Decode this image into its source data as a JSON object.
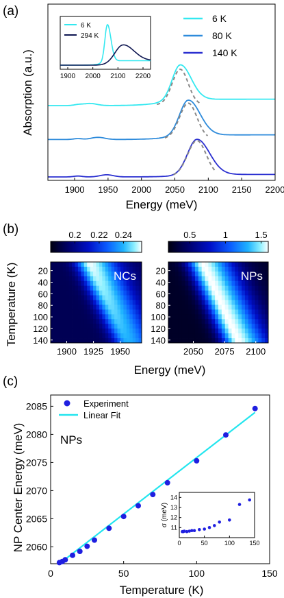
{
  "panels": {
    "a": {
      "label": "(a)",
      "chart_data": {
        "type": "line",
        "xlabel": "Energy (meV)",
        "ylabel": "Absorption (a.u.)",
        "xlim": [
          1860,
          2200
        ],
        "xticks": [
          1900,
          1950,
          2000,
          2050,
          2100,
          2150,
          2200
        ],
        "yticks": false,
        "legend": "top-right",
        "series": [
          {
            "name": "6 K",
            "color": "#33e8f0",
            "peak": 2058,
            "width": 12,
            "amp": 1.0,
            "baseline": 0.0,
            "tail": 0.18,
            "offset": 2.0
          },
          {
            "name": "80 K",
            "color": "#2e8bdb",
            "peak": 2070,
            "width": 13,
            "amp": 1.0,
            "baseline": 0.0,
            "tail": 0.13,
            "offset": 1.05
          },
          {
            "name": "140 K",
            "color": "#2a2fd0",
            "peak": 2083,
            "width": 14,
            "amp": 1.0,
            "baseline": 0.0,
            "tail": 0.07,
            "offset": 0.0
          }
        ],
        "fits": [
          {
            "series": "6 K",
            "style": "dashed",
            "color": "#888888"
          },
          {
            "series": "80 K",
            "style": "dashed",
            "color": "#888888"
          },
          {
            "series": "140 K",
            "style": "dashed",
            "color": "#888888"
          }
        ],
        "inset": {
          "type": "line",
          "xlim": [
            1870,
            2230
          ],
          "xticks": [
            1900,
            2000,
            2100,
            2200
          ],
          "legend": "top-left",
          "series": [
            {
              "name": "6 K",
              "color": "#33e8f0",
              "peak": 2058,
              "width": 10,
              "amp": 1.0
            },
            {
              "name": "294 K",
              "color": "#0d1550",
              "peak": 2118,
              "width": 32,
              "amp": 0.45
            }
          ]
        }
      }
    },
    "b": {
      "label": "(b)",
      "ylabel": "Temperature (K)",
      "xlabel": "Energy (meV)",
      "chart_data": [
        {
          "type": "heatmap",
          "label": "NCs",
          "xlim": [
            1885,
            1970
          ],
          "xticks": [
            1900,
            1925,
            1950
          ],
          "yticks": [
            20,
            40,
            60,
            80,
            100,
            120,
            140
          ],
          "ylim": [
            5,
            145
          ],
          "colorbar": {
            "range": [
              0.18,
              0.255
            ],
            "ticks": [
              0.2,
              0.22,
              0.24
            ]
          },
          "peak_center_at_T": [
            [
              6,
              1921
            ],
            [
              140,
              1956
            ]
          ]
        },
        {
          "type": "heatmap",
          "label": "NPs",
          "xlim": [
            2030,
            2110
          ],
          "xticks": [
            2050,
            2075,
            2100
          ],
          "yticks": [
            20,
            40,
            60,
            80,
            100,
            120,
            140
          ],
          "ylim": [
            5,
            145
          ],
          "colorbar": {
            "range": [
              0.2,
              1.6
            ],
            "ticks": [
              0.5,
              1,
              1.5
            ]
          },
          "peak_center_at_T": [
            [
              6,
              2057
            ],
            [
              140,
              2085
            ]
          ]
        }
      ]
    },
    "c": {
      "label": "(c)",
      "annotation": "NPs",
      "chart_data": {
        "type": "scatter",
        "xlabel": "Temperature (K)",
        "ylabel": "NP Center Energy (meV)",
        "xlim": [
          0,
          150
        ],
        "ylim": [
          2057,
          2087
        ],
        "xticks": [
          0,
          50,
          100,
          150
        ],
        "yticks": [
          2060,
          2065,
          2070,
          2075,
          2080,
          2085
        ],
        "legend": "top-left",
        "series": [
          {
            "name": "Experiment",
            "color": "#1f1fe0",
            "x": [
              6,
              8,
              10,
              15,
              20,
              25,
              30,
              40,
              50,
              60,
              70,
              80,
              100,
              120,
              140
            ],
            "y": [
              2057.2,
              2057.4,
              2057.7,
              2058.5,
              2059.2,
              2060.1,
              2061.2,
              2063.3,
              2065.4,
              2067.3,
              2069.3,
              2071.4,
              2075.3,
              2079.9,
              2084.6
            ]
          },
          {
            "name": "Linear Fit",
            "color": "#22e5ee",
            "x": [
              6,
              140
            ],
            "y": [
              2057.0,
              2083.9
            ]
          }
        ],
        "inset": {
          "type": "scatter",
          "ylabel": "σ (meV)",
          "xlim": [
            0,
            150
          ],
          "ylim": [
            10,
            14.5
          ],
          "xticks": [
            0,
            50,
            100,
            150
          ],
          "yticks": [
            11,
            12,
            13,
            14
          ],
          "x": [
            6,
            8,
            10,
            15,
            20,
            25,
            30,
            40,
            50,
            60,
            70,
            80,
            100,
            120,
            140
          ],
          "y": [
            10.6,
            10.6,
            10.65,
            10.6,
            10.65,
            10.7,
            10.7,
            10.8,
            10.85,
            11.0,
            11.2,
            11.55,
            11.75,
            13.3,
            13.75
          ]
        }
      }
    }
  }
}
